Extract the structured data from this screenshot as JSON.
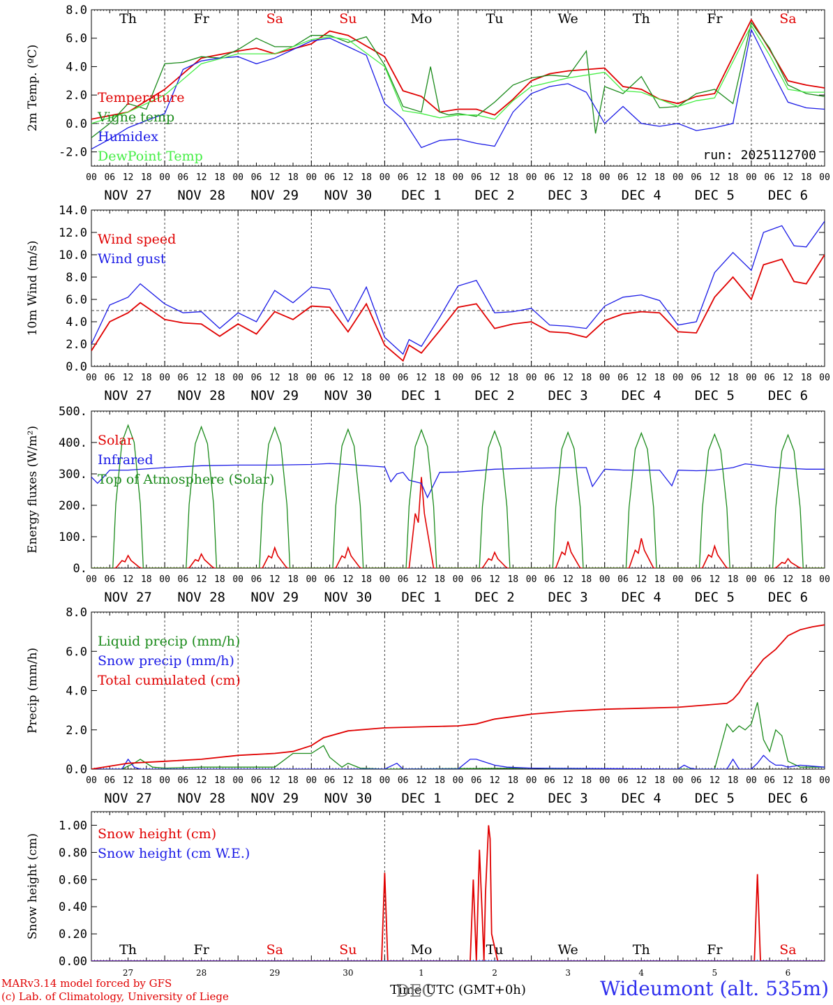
{
  "colors": {
    "red": "#e00000",
    "green": "#1a8a1a",
    "lightgreen": "#44ee44",
    "blue": "#1a1ae6",
    "black": "#000000"
  },
  "x_axis": {
    "hour_ticks": [
      "00",
      "06",
      "12",
      "18",
      "00",
      "06",
      "12",
      "18",
      "00",
      "06",
      "12",
      "18",
      "00",
      "06",
      "12",
      "18",
      "00",
      "06",
      "12",
      "18",
      "00",
      "06",
      "12",
      "18",
      "00",
      "06",
      "12",
      "18",
      "00",
      "06",
      "12",
      "18",
      "00",
      "06",
      "12",
      "18",
      "00",
      "06",
      "12",
      "18",
      "00"
    ],
    "dates": [
      "NOV 27",
      "NOV 28",
      "NOV 29",
      "NOV 30",
      "DEC  1",
      "DEC  2",
      "DEC  3",
      "DEC  4",
      "DEC  5",
      "DEC  6"
    ],
    "weekdays": [
      "Th",
      "Fr",
      "Sa",
      "Su",
      "Mo",
      "Tu",
      "We",
      "Th",
      "Fr",
      "Sa"
    ],
    "weekend_flags": [
      false,
      false,
      true,
      true,
      false,
      false,
      false,
      false,
      false,
      true
    ],
    "day_numbers": [
      "27",
      "28",
      "29",
      "30",
      "1",
      "2",
      "3",
      "4",
      "5",
      "6"
    ],
    "xlabel": "Time UTC (GMT+0h)",
    "month_overlay": "DEC",
    "hours_total": 240
  },
  "footer": {
    "model_credit": "MARv3.14 model forced by GFS",
    "lab_credit": "(c) Lab. of Climatology, University of Liege",
    "station": "Wideumont (alt. 535m)"
  },
  "chart_data": [
    {
      "id": "temp",
      "type": "line",
      "ylabel": "2m Temp. (ºC)",
      "ylim": [
        -3,
        8
      ],
      "yticks": [
        8,
        6,
        4,
        2,
        0,
        -2
      ],
      "ytick_labels": [
        "8.0",
        "6.0",
        "4.0",
        "2.0",
        "0.0",
        "-2.0"
      ],
      "reference_line": 0,
      "annotation": "run: 2025112700",
      "series": [
        {
          "name": "Temperature",
          "color": "#e00000",
          "x": [
            0,
            12,
            24,
            36,
            48,
            54,
            60,
            72,
            78,
            84,
            96,
            102,
            108,
            114,
            120,
            126,
            132,
            138,
            144,
            150,
            156,
            168,
            174,
            180,
            186,
            192,
            198,
            204,
            216,
            222,
            228,
            234,
            240
          ],
          "values": [
            0.3,
            0.8,
            2.4,
            4.6,
            5.1,
            5.3,
            4.9,
            5.6,
            6.5,
            6.2,
            4.7,
            2.3,
            1.9,
            0.8,
            1.0,
            1.0,
            0.6,
            1.7,
            3.0,
            3.5,
            3.7,
            3.9,
            2.6,
            2.4,
            1.7,
            1.4,
            1.9,
            2.1,
            7.3,
            5.2,
            3.0,
            2.7,
            2.5
          ]
        },
        {
          "name": "Vigne temp",
          "color": "#1a8a1a",
          "x": [
            0,
            6,
            12,
            18,
            24,
            30,
            36,
            42,
            48,
            54,
            60,
            66,
            72,
            78,
            84,
            90,
            96,
            102,
            108,
            111,
            114,
            117,
            120,
            126,
            132,
            138,
            144,
            150,
            156,
            162,
            165,
            168,
            174,
            180,
            186,
            192,
            198,
            204,
            210,
            216,
            222,
            228,
            234,
            240
          ],
          "values": [
            -1.0,
            0.0,
            1.4,
            1.0,
            4.2,
            4.3,
            4.7,
            4.6,
            5.2,
            6.0,
            5.4,
            5.4,
            6.2,
            6.2,
            5.7,
            6.1,
            4.1,
            1.2,
            0.8,
            4.0,
            0.8,
            0.6,
            0.7,
            0.5,
            1.5,
            2.7,
            3.2,
            3.4,
            3.3,
            5.1,
            -0.7,
            2.6,
            2.1,
            3.3,
            1.1,
            1.2,
            2.1,
            2.4,
            1.4,
            7.1,
            5.3,
            2.7,
            2.1,
            1.9
          ]
        },
        {
          "name": "Humidex",
          "color": "#1a1ae6",
          "x": [
            0,
            6,
            12,
            18,
            24,
            30,
            36,
            42,
            48,
            54,
            60,
            66,
            72,
            78,
            84,
            90,
            96,
            102,
            108,
            114,
            120,
            126,
            132,
            138,
            144,
            150,
            156,
            162,
            168,
            174,
            180,
            186,
            192,
            198,
            204,
            210,
            216,
            222,
            228,
            234,
            240
          ],
          "values": [
            -1.8,
            -1.1,
            -0.3,
            0.2,
            0.7,
            3.8,
            4.4,
            4.6,
            4.7,
            4.2,
            4.6,
            5.2,
            5.8,
            6.0,
            5.4,
            4.8,
            1.4,
            0.3,
            -1.7,
            -1.2,
            -1.1,
            -1.4,
            -1.6,
            0.8,
            2.1,
            2.6,
            2.8,
            2.2,
            0.0,
            1.2,
            0.0,
            -0.2,
            0.0,
            -0.5,
            -0.3,
            0.0,
            6.6,
            4.0,
            1.5,
            1.1,
            1.0
          ]
        },
        {
          "name": "DewPoint Temp",
          "color": "#44ee44",
          "x": [
            0,
            12,
            24,
            36,
            48,
            60,
            72,
            78,
            84,
            96,
            102,
            108,
            114,
            120,
            126,
            132,
            138,
            144,
            156,
            168,
            174,
            180,
            192,
            198,
            204,
            216,
            222,
            228,
            234,
            240
          ],
          "values": [
            0.0,
            0.8,
            2.0,
            4.2,
            4.9,
            4.9,
            5.9,
            6.1,
            5.9,
            4.0,
            0.9,
            0.7,
            0.4,
            0.6,
            0.6,
            0.3,
            1.6,
            2.6,
            3.2,
            3.6,
            2.3,
            2.2,
            1.2,
            1.6,
            1.8,
            6.9,
            4.8,
            2.4,
            2.2,
            2.2
          ]
        }
      ]
    },
    {
      "id": "wind",
      "type": "line",
      "ylabel": "10m Wind (m/s)",
      "ylim": [
        0,
        14
      ],
      "yticks": [
        14,
        12,
        10,
        8,
        6,
        4,
        2,
        0
      ],
      "ytick_labels": [
        "14.0",
        "12.0",
        "10.0",
        "8.0",
        "6.0",
        "4.0",
        "2.0",
        "0.0"
      ],
      "reference_line": 5,
      "series": [
        {
          "name": "Wind speed",
          "color": "#e00000",
          "x": [
            0,
            6,
            12,
            16,
            24,
            30,
            36,
            42,
            48,
            54,
            60,
            66,
            72,
            78,
            84,
            90,
            96,
            102,
            104,
            108,
            114,
            120,
            126,
            132,
            138,
            144,
            150,
            156,
            162,
            168,
            174,
            180,
            186,
            192,
            198,
            204,
            210,
            216,
            220,
            226,
            230,
            234,
            240
          ],
          "values": [
            1.4,
            4.0,
            4.8,
            5.7,
            4.2,
            3.9,
            3.8,
            2.7,
            3.8,
            2.9,
            4.9,
            4.2,
            5.4,
            5.3,
            3.1,
            5.6,
            1.9,
            0.5,
            1.9,
            1.2,
            3.2,
            5.3,
            5.6,
            3.4,
            3.8,
            4.0,
            3.1,
            3.0,
            2.6,
            4.1,
            4.7,
            4.9,
            4.8,
            3.1,
            3.0,
            6.2,
            8.0,
            6.0,
            9.1,
            9.6,
            7.6,
            7.4,
            10.0
          ]
        },
        {
          "name": "Wind gust",
          "color": "#1a1ae6",
          "x": [
            0,
            6,
            12,
            16,
            24,
            30,
            36,
            42,
            48,
            54,
            60,
            66,
            72,
            78,
            84,
            90,
            96,
            102,
            104,
            108,
            114,
            120,
            126,
            132,
            138,
            144,
            150,
            156,
            162,
            168,
            174,
            180,
            186,
            192,
            198,
            204,
            210,
            216,
            220,
            226,
            230,
            234,
            240
          ],
          "values": [
            2.0,
            5.5,
            6.2,
            7.4,
            5.6,
            4.8,
            4.9,
            3.4,
            4.8,
            4.0,
            6.8,
            5.7,
            7.1,
            6.9,
            4.0,
            7.1,
            2.6,
            1.1,
            2.4,
            1.8,
            4.4,
            7.2,
            7.7,
            4.8,
            4.9,
            5.2,
            3.7,
            3.6,
            3.4,
            5.4,
            6.2,
            6.4,
            5.9,
            3.7,
            4.0,
            8.4,
            10.2,
            8.6,
            12.0,
            12.6,
            10.8,
            10.7,
            13.0
          ]
        }
      ]
    },
    {
      "id": "energy",
      "type": "line",
      "ylabel": "Energy fluxes (W/m²)",
      "ylim": [
        0,
        500
      ],
      "yticks": [
        500,
        400,
        300,
        200,
        100,
        0
      ],
      "ytick_labels": [
        "500.",
        "400.",
        "300.",
        "200.",
        "100.",
        "0."
      ],
      "series": [
        {
          "name": "Solar",
          "color": "#e00000",
          "daily_peak_hour": 12,
          "daily_peak_values": [
            40,
            45,
            65,
            65,
            290,
            50,
            85,
            95,
            70,
            30
          ]
        },
        {
          "name": "Infrared",
          "color": "#1a1ae6",
          "x": [
            0,
            2,
            4,
            6,
            12,
            24,
            36,
            48,
            60,
            72,
            78,
            84,
            96,
            98,
            100,
            102,
            104,
            108,
            110,
            114,
            120,
            132,
            144,
            156,
            162,
            164,
            168,
            174,
            180,
            186,
            190,
            192,
            198,
            204,
            210,
            214,
            216,
            222,
            228,
            234,
            240
          ],
          "values": [
            290,
            270,
            290,
            312,
            312,
            320,
            326,
            328,
            328,
            330,
            333,
            330,
            322,
            275,
            300,
            305,
            280,
            270,
            225,
            305,
            306,
            315,
            318,
            320,
            320,
            260,
            315,
            312,
            312,
            312,
            262,
            312,
            310,
            312,
            320,
            332,
            330,
            322,
            318,
            315,
            315
          ]
        },
        {
          "name": "Top of Atmosphere (Solar)",
          "color": "#1a8a1a",
          "daily_peak_values": [
            455,
            450,
            448,
            442,
            440,
            436,
            432,
            430,
            426,
            424
          ],
          "day_start_hour": 7,
          "day_end_hour": 17
        }
      ]
    },
    {
      "id": "precip",
      "type": "line",
      "ylabel": "Precip (mm/h)",
      "ylim": [
        0,
        8
      ],
      "yticks": [
        8,
        6,
        4,
        2,
        0
      ],
      "ytick_labels": [
        "8.0",
        "6.0",
        "4.0",
        "2.0",
        "0.0"
      ],
      "series": [
        {
          "name": "Liquid precip (mm/h)",
          "color": "#1a8a1a",
          "x": [
            0,
            10,
            14,
            16,
            20,
            24,
            36,
            60,
            66,
            72,
            76,
            78,
            82,
            84,
            88,
            96,
            144,
            156,
            180,
            192,
            204,
            208,
            210,
            212,
            214,
            216,
            218,
            220,
            222,
            224,
            226,
            228,
            232,
            240
          ],
          "values": [
            0,
            0,
            0.3,
            0.5,
            0.1,
            0.05,
            0.1,
            0.1,
            0.8,
            0.8,
            1.2,
            0.6,
            0.1,
            0.3,
            0.05,
            0,
            0.05,
            0,
            0,
            0,
            0,
            2.3,
            1.9,
            2.2,
            2.0,
            2.3,
            3.4,
            1.5,
            0.9,
            2.0,
            1.7,
            0.4,
            0.1,
            0.1
          ]
        },
        {
          "name": "Snow precip (mm/h)",
          "color": "#1a1ae6",
          "x": [
            0,
            10,
            12,
            14,
            16,
            96,
            100,
            102,
            104,
            120,
            124,
            126,
            132,
            136,
            144,
            192,
            194,
            196,
            198,
            200,
            208,
            210,
            212,
            214,
            216,
            218,
            220,
            222,
            224,
            226,
            228,
            232,
            240
          ],
          "values": [
            0,
            0,
            0.5,
            0.1,
            0,
            0,
            0.3,
            0,
            0,
            0,
            0.5,
            0.5,
            0.2,
            0.1,
            0.05,
            0,
            0.2,
            0.05,
            0,
            0,
            0,
            0.5,
            0,
            0,
            0,
            0.3,
            0.7,
            0.4,
            0.2,
            0.2,
            0.1,
            0.2,
            0.1
          ]
        },
        {
          "name": "Total cumulated (cm)",
          "color": "#e00000",
          "x": [
            0,
            12,
            24,
            36,
            48,
            60,
            66,
            72,
            76,
            84,
            96,
            120,
            126,
            132,
            144,
            156,
            168,
            180,
            192,
            196,
            200,
            208,
            210,
            212,
            214,
            216,
            220,
            224,
            228,
            232,
            236,
            240
          ],
          "values": [
            0,
            0.3,
            0.4,
            0.5,
            0.7,
            0.8,
            0.9,
            1.2,
            1.6,
            1.95,
            2.1,
            2.2,
            2.3,
            2.55,
            2.8,
            2.95,
            3.05,
            3.1,
            3.15,
            3.2,
            3.25,
            3.35,
            3.55,
            3.9,
            4.4,
            4.8,
            5.6,
            6.1,
            6.8,
            7.1,
            7.25,
            7.35
          ]
        }
      ]
    },
    {
      "id": "snow",
      "type": "line",
      "ylabel": "Snow height (cm)",
      "ylim": [
        0,
        1.1
      ],
      "yticks": [
        1.0,
        0.8,
        0.6,
        0.4,
        0.2,
        0.0
      ],
      "ytick_labels": [
        "1.00",
        "0.80",
        "0.60",
        "0.40",
        "0.20",
        "0.00"
      ],
      "series": [
        {
          "name": "Snow height (cm)",
          "color": "#e00000",
          "x": [
            0,
            95,
            96,
            97,
            100,
            124,
            125,
            126,
            127,
            128,
            128.5,
            129,
            130,
            130.5,
            131,
            133,
            134,
            198,
            217,
            218,
            219,
            240
          ],
          "values": [
            0,
            0,
            0.65,
            0,
            0,
            0,
            0.6,
            0,
            0.82,
            0.3,
            0,
            0.5,
            1.0,
            0.9,
            0.2,
            0,
            0,
            0,
            0,
            0.64,
            0,
            0
          ]
        },
        {
          "name": "Snow height (cm W.E.)",
          "color": "#1a1ae6",
          "x": [
            0,
            240
          ],
          "values": [
            0,
            0
          ]
        }
      ]
    }
  ]
}
